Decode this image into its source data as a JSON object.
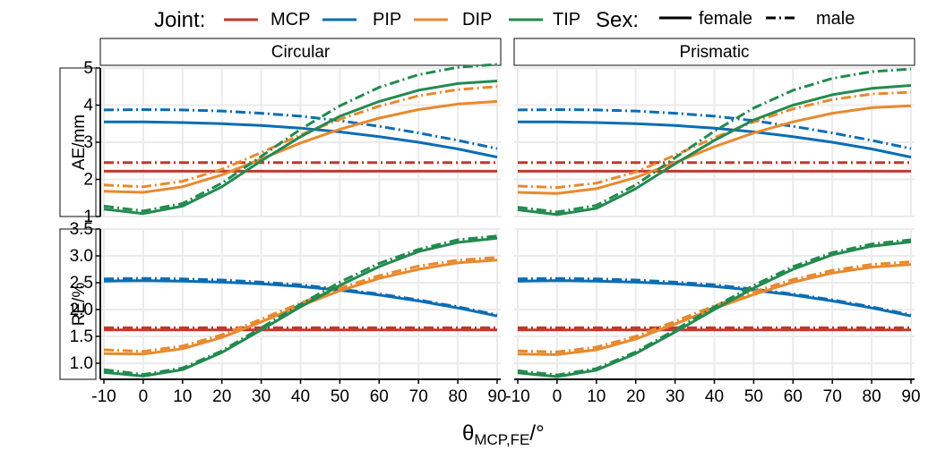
{
  "legend": {
    "joint_title": "Joint:",
    "joints": [
      {
        "key": "MCP",
        "label": "MCP"
      },
      {
        "key": "PIP",
        "label": "PIP"
      },
      {
        "key": "DIP",
        "label": "DIP"
      },
      {
        "key": "TIP",
        "label": "TIP"
      }
    ],
    "sex_title": "Sex:",
    "sexes": [
      {
        "key": "female",
        "label": "female",
        "style": "solid"
      },
      {
        "key": "male",
        "label": "male",
        "style": "dashdot"
      }
    ]
  },
  "colors": {
    "MCP": "#C0392B",
    "PIP": "#0A6DB4",
    "DIP": "#E8892E",
    "TIP": "#238A4F",
    "grid": "#EBEBEB"
  },
  "xlabel": {
    "main": "θ",
    "sub": "MCP,FE",
    "suffix": "/°"
  },
  "chart_data": {
    "type": "line",
    "x": [
      -10,
      0,
      10,
      20,
      30,
      40,
      50,
      60,
      70,
      80,
      90
    ],
    "xticks": [
      "-10",
      "0",
      "10",
      "20",
      "30",
      "40",
      "50",
      "60",
      "70",
      "80",
      "90"
    ],
    "xlim": [
      -10,
      90
    ],
    "columns": [
      "Circular",
      "Prismatic"
    ],
    "rows": [
      {
        "label": "AE/mm",
        "ylim": [
          1,
          5
        ],
        "yticks": [
          "1",
          "2",
          "3",
          "4",
          "5"
        ],
        "ytick_values": [
          1,
          2,
          3,
          4,
          5
        ]
      },
      {
        "label": "RE/%",
        "ylim": [
          0.7,
          3.5
        ],
        "yticks": [
          "1.0",
          "1.5",
          "2.0",
          "2.5",
          "3.0",
          "3.5"
        ],
        "ytick_values": [
          1.0,
          1.5,
          2.0,
          2.5,
          3.0,
          3.5
        ]
      }
    ],
    "panels": [
      {
        "row": "AE/mm",
        "col": "Circular",
        "series": [
          {
            "joint": "MCP",
            "sex": "female",
            "values": [
              2.22,
              2.22,
              2.22,
              2.22,
              2.22,
              2.22,
              2.22,
              2.22,
              2.22,
              2.22,
              2.22
            ]
          },
          {
            "joint": "MCP",
            "sex": "male",
            "values": [
              2.45,
              2.45,
              2.45,
              2.45,
              2.45,
              2.45,
              2.45,
              2.45,
              2.45,
              2.45,
              2.45
            ]
          },
          {
            "joint": "PIP",
            "sex": "female",
            "values": [
              3.55,
              3.55,
              3.53,
              3.5,
              3.45,
              3.38,
              3.28,
              3.15,
              3.0,
              2.82,
              2.6
            ]
          },
          {
            "joint": "PIP",
            "sex": "male",
            "values": [
              3.87,
              3.88,
              3.87,
              3.84,
              3.78,
              3.7,
              3.58,
              3.43,
              3.25,
              3.05,
              2.83
            ]
          },
          {
            "joint": "DIP",
            "sex": "female",
            "values": [
              1.68,
              1.65,
              1.8,
              2.12,
              2.55,
              2.98,
              3.35,
              3.65,
              3.88,
              4.03,
              4.1
            ]
          },
          {
            "joint": "DIP",
            "sex": "male",
            "values": [
              1.85,
              1.8,
              1.95,
              2.27,
              2.72,
              3.2,
              3.62,
              3.97,
              4.25,
              4.42,
              4.5
            ]
          },
          {
            "joint": "TIP",
            "sex": "female",
            "values": [
              1.2,
              1.08,
              1.28,
              1.8,
              2.5,
              3.15,
              3.7,
              4.1,
              4.4,
              4.58,
              4.65
            ]
          },
          {
            "joint": "TIP",
            "sex": "male",
            "values": [
              1.28,
              1.15,
              1.35,
              1.9,
              2.62,
              3.35,
              3.98,
              4.48,
              4.82,
              5.02,
              5.1
            ]
          }
        ]
      },
      {
        "row": "AE/mm",
        "col": "Prismatic",
        "series": [
          {
            "joint": "MCP",
            "sex": "female",
            "values": [
              2.22,
              2.22,
              2.22,
              2.22,
              2.22,
              2.22,
              2.22,
              2.22,
              2.22,
              2.22,
              2.22
            ]
          },
          {
            "joint": "MCP",
            "sex": "male",
            "values": [
              2.45,
              2.45,
              2.45,
              2.45,
              2.45,
              2.45,
              2.45,
              2.45,
              2.45,
              2.45,
              2.45
            ]
          },
          {
            "joint": "PIP",
            "sex": "female",
            "values": [
              3.55,
              3.55,
              3.53,
              3.5,
              3.45,
              3.38,
              3.28,
              3.15,
              3.0,
              2.82,
              2.6
            ]
          },
          {
            "joint": "PIP",
            "sex": "male",
            "values": [
              3.87,
              3.88,
              3.87,
              3.84,
              3.78,
              3.7,
              3.58,
              3.43,
              3.25,
              3.05,
              2.83
            ]
          },
          {
            "joint": "DIP",
            "sex": "female",
            "values": [
              1.65,
              1.62,
              1.75,
              2.05,
              2.45,
              2.88,
              3.25,
              3.55,
              3.78,
              3.93,
              3.98
            ]
          },
          {
            "joint": "DIP",
            "sex": "male",
            "values": [
              1.82,
              1.78,
              1.9,
              2.2,
              2.65,
              3.12,
              3.55,
              3.9,
              4.15,
              4.3,
              4.35
            ]
          },
          {
            "joint": "TIP",
            "sex": "female",
            "values": [
              1.18,
              1.05,
              1.22,
              1.75,
              2.42,
              3.05,
              3.6,
              4.0,
              4.28,
              4.45,
              4.53
            ]
          },
          {
            "joint": "TIP",
            "sex": "male",
            "values": [
              1.25,
              1.12,
              1.3,
              1.85,
              2.58,
              3.3,
              3.92,
              4.4,
              4.72,
              4.9,
              4.97
            ]
          }
        ]
      },
      {
        "row": "RE/%",
        "col": "Circular",
        "series": [
          {
            "joint": "MCP",
            "sex": "female",
            "values": [
              1.62,
              1.62,
              1.62,
              1.62,
              1.62,
              1.62,
              1.62,
              1.62,
              1.62,
              1.62,
              1.62
            ]
          },
          {
            "joint": "MCP",
            "sex": "male",
            "values": [
              1.66,
              1.66,
              1.66,
              1.66,
              1.66,
              1.66,
              1.66,
              1.66,
              1.66,
              1.66,
              1.66
            ]
          },
          {
            "joint": "PIP",
            "sex": "female",
            "values": [
              2.53,
              2.54,
              2.53,
              2.51,
              2.48,
              2.43,
              2.36,
              2.27,
              2.16,
              2.03,
              1.88
            ]
          },
          {
            "joint": "PIP",
            "sex": "male",
            "values": [
              2.57,
              2.58,
              2.57,
              2.55,
              2.51,
              2.46,
              2.38,
              2.29,
              2.18,
              2.05,
              1.9
            ]
          },
          {
            "joint": "DIP",
            "sex": "female",
            "values": [
              1.18,
              1.17,
              1.27,
              1.48,
              1.77,
              2.07,
              2.35,
              2.58,
              2.75,
              2.87,
              2.92
            ]
          },
          {
            "joint": "DIP",
            "sex": "male",
            "values": [
              1.25,
              1.22,
              1.32,
              1.53,
              1.82,
              2.12,
              2.4,
              2.63,
              2.81,
              2.92,
              2.97
            ]
          },
          {
            "joint": "TIP",
            "sex": "female",
            "values": [
              0.83,
              0.76,
              0.88,
              1.2,
              1.62,
              2.05,
              2.45,
              2.8,
              3.08,
              3.25,
              3.33
            ]
          },
          {
            "joint": "TIP",
            "sex": "male",
            "values": [
              0.88,
              0.79,
              0.91,
              1.23,
              1.66,
              2.1,
              2.51,
              2.86,
              3.12,
              3.3,
              3.37
            ]
          }
        ]
      },
      {
        "row": "RE/%",
        "col": "Prismatic",
        "series": [
          {
            "joint": "MCP",
            "sex": "female",
            "values": [
              1.62,
              1.62,
              1.62,
              1.62,
              1.62,
              1.62,
              1.62,
              1.62,
              1.62,
              1.62,
              1.62
            ]
          },
          {
            "joint": "MCP",
            "sex": "male",
            "values": [
              1.66,
              1.66,
              1.66,
              1.66,
              1.66,
              1.66,
              1.66,
              1.66,
              1.66,
              1.66,
              1.66
            ]
          },
          {
            "joint": "PIP",
            "sex": "female",
            "values": [
              2.53,
              2.54,
              2.53,
              2.51,
              2.48,
              2.43,
              2.36,
              2.27,
              2.16,
              2.03,
              1.88
            ]
          },
          {
            "joint": "PIP",
            "sex": "male",
            "values": [
              2.57,
              2.58,
              2.57,
              2.55,
              2.51,
              2.46,
              2.38,
              2.29,
              2.18,
              2.05,
              1.9
            ]
          },
          {
            "joint": "DIP",
            "sex": "female",
            "values": [
              1.17,
              1.16,
              1.25,
              1.45,
              1.73,
              2.02,
              2.28,
              2.51,
              2.68,
              2.79,
              2.84
            ]
          },
          {
            "joint": "DIP",
            "sex": "male",
            "values": [
              1.23,
              1.21,
              1.3,
              1.5,
              1.78,
              2.07,
              2.33,
              2.56,
              2.73,
              2.84,
              2.89
            ]
          },
          {
            "joint": "TIP",
            "sex": "female",
            "values": [
              0.82,
              0.75,
              0.87,
              1.18,
              1.58,
              2.0,
              2.4,
              2.75,
              3.02,
              3.18,
              3.26
            ]
          },
          {
            "joint": "TIP",
            "sex": "male",
            "values": [
              0.86,
              0.78,
              0.9,
              1.21,
              1.62,
              2.05,
              2.45,
              2.8,
              3.06,
              3.22,
              3.3
            ]
          }
        ]
      }
    ]
  }
}
